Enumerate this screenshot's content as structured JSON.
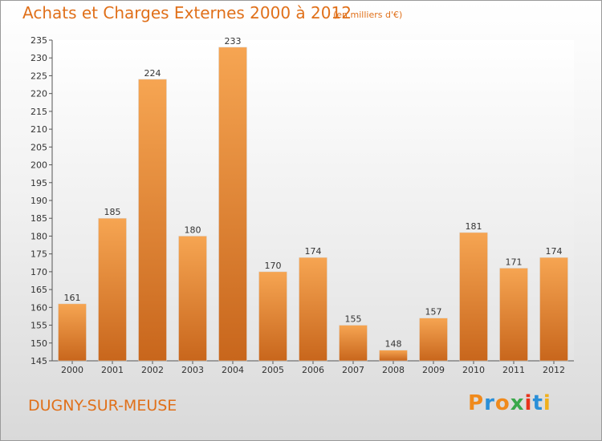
{
  "header": {
    "title": "Achats et Charges Externes 2000 à 2012",
    "subtitle": "(en milliers d'€)"
  },
  "footer": {
    "city": "DUGNY-SUR-MEUSE",
    "logo": "Proxiti"
  },
  "colors": {
    "accent": "#e0701a",
    "bar_light": "#f6a552",
    "bar_dark": "#c8661c",
    "logo_letters": [
      "#f08a1c",
      "#2a8fd8",
      "#f08a1c",
      "#3aa84a",
      "#e8331c",
      "#2a8fd8",
      "#f0b01c"
    ]
  },
  "chart_data": {
    "type": "bar",
    "title": "Achats et Charges Externes 2000 à 2012",
    "subtitle": "(en milliers d'€)",
    "categories": [
      "2000",
      "2001",
      "2002",
      "2003",
      "2004",
      "2005",
      "2006",
      "2007",
      "2008",
      "2009",
      "2010",
      "2011",
      "2012"
    ],
    "values": [
      161,
      185,
      224,
      180,
      233,
      170,
      174,
      155,
      148,
      157,
      181,
      171,
      174
    ],
    "xlabel": "",
    "ylabel": "",
    "ylim": [
      145,
      235
    ],
    "yticks": [
      145,
      150,
      155,
      160,
      165,
      170,
      175,
      180,
      185,
      190,
      195,
      200,
      205,
      210,
      215,
      220,
      225,
      230,
      235
    ],
    "grid": false,
    "legend": "none"
  }
}
